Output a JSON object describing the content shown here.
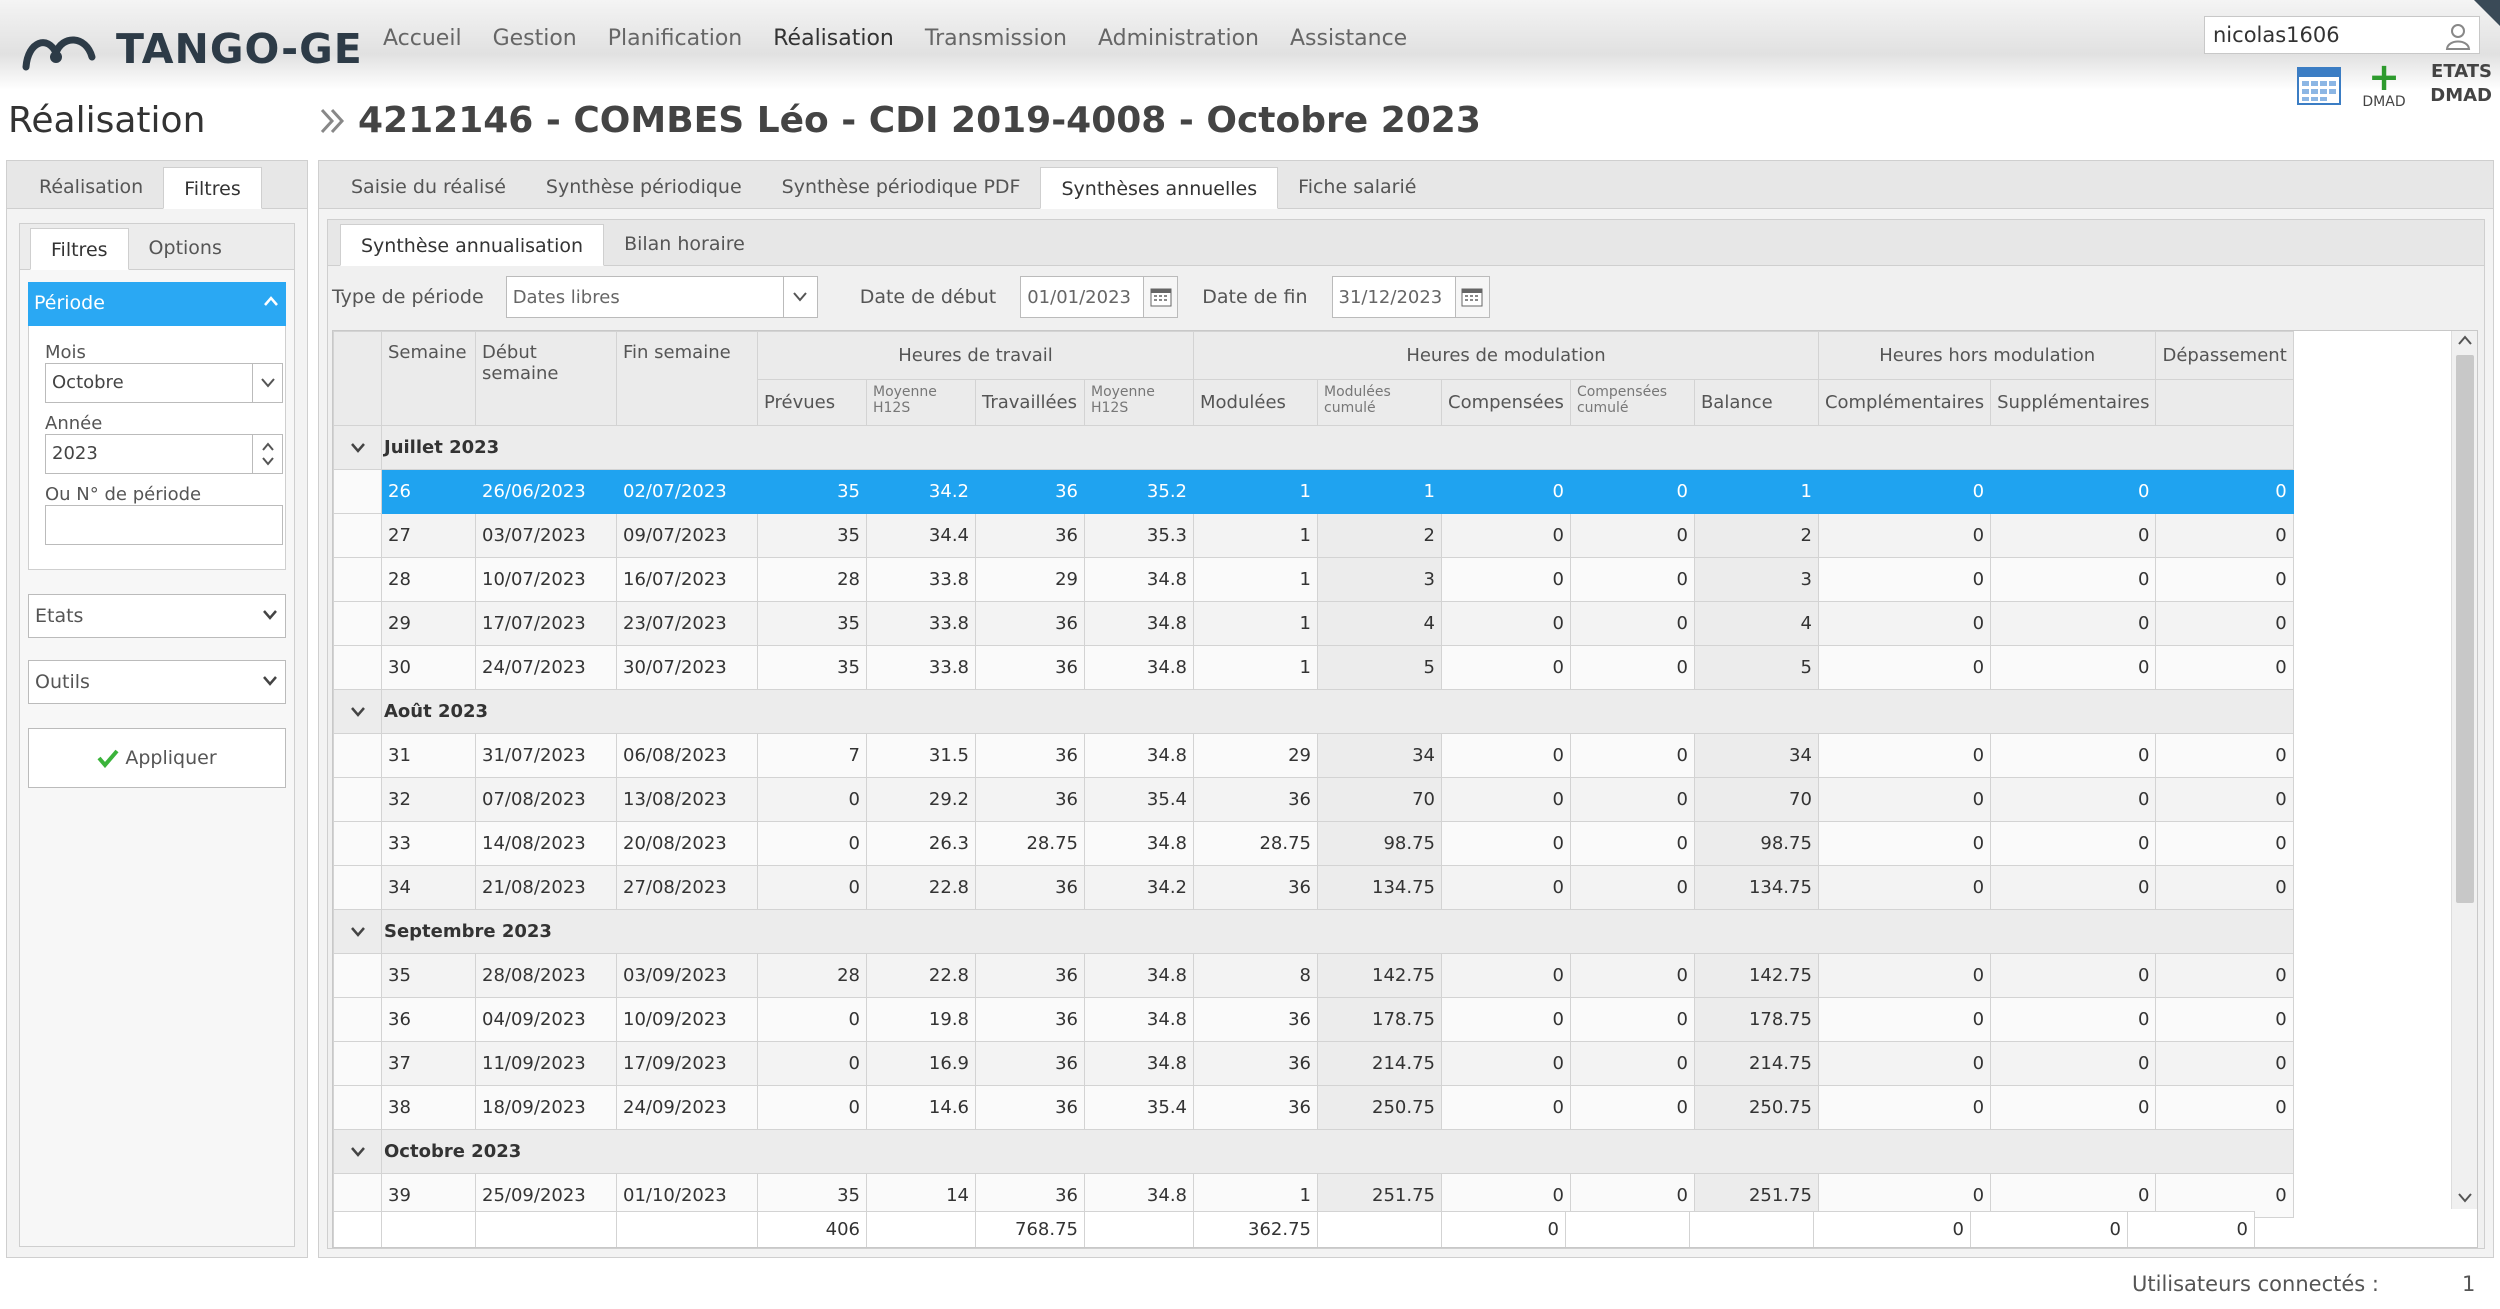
{
  "app": {
    "logo_text": "TANGO-GE",
    "nav": [
      "Accueil",
      "Gestion",
      "Planification",
      "Réalisation",
      "Transmission",
      "Administration",
      "Assistance"
    ],
    "active_nav": "Réalisation",
    "user": "nicolas1606",
    "tools": {
      "dmad_label": "DMAD",
      "etats_label": "ETATS",
      "etats_sub": "DMAD"
    }
  },
  "page": {
    "title": "Réalisation",
    "heading": "4212146 - COMBES Léo - CDI 2019-4008 - Octobre 2023"
  },
  "left": {
    "tabs": [
      "Réalisation",
      "Filtres"
    ],
    "active_tab": "Filtres",
    "inner_tabs": [
      "Filtres",
      "Options"
    ],
    "section": "Période",
    "mois_label": "Mois",
    "mois_value": "Octobre",
    "annee_label": "Année",
    "annee_value": "2023",
    "periode_label": "Ou N° de période",
    "periode_value": "",
    "etats": "Etats",
    "outils": "Outils",
    "apply": "Appliquer"
  },
  "main": {
    "tabs": [
      "Saisie du réalisé",
      "Synthèse périodique",
      "Synthèse périodique PDF",
      "Synthèses annuelles",
      "Fiche salarié"
    ],
    "active_tab": "Synthèses annuelles",
    "sub_tabs": [
      "Synthèse annualisation",
      "Bilan horaire"
    ],
    "filters": {
      "type_label": "Type de période",
      "type_value": "Dates libres",
      "debut_label": "Date de début",
      "debut_value": "01/01/2023",
      "fin_label": "Date de fin",
      "fin_value": "31/12/2023"
    }
  },
  "grid": {
    "headers": {
      "semaine": "Semaine",
      "debut": "Début semaine",
      "fin": "Fin semaine",
      "g_travail": "Heures de travail",
      "g_modulation": "Heures de modulation",
      "g_hors": "Heures hors modulation",
      "depassement": "Dépassement",
      "prevues": "Prévues",
      "moy1": "Moyenne H12S",
      "travaillees": "Travaillées",
      "moy2": "Moyenne H12S",
      "modulees": "Modulées",
      "modcum": "Modulées cumulé",
      "compensees": "Compensées",
      "compcum": "Compensées cumulé",
      "balance": "Balance",
      "complementaires": "Complémentaires",
      "supplementaires": "Supplémentaires"
    },
    "groups": [
      {
        "label": "Juillet 2023",
        "rows": [
          [
            "26",
            "26/06/2023",
            "02/07/2023",
            "35",
            "34.2",
            "36",
            "35.2",
            "1",
            "1",
            "0",
            "0",
            "1",
            "0",
            "0",
            "0"
          ],
          [
            "27",
            "03/07/2023",
            "09/07/2023",
            "35",
            "34.4",
            "36",
            "35.3",
            "1",
            "2",
            "0",
            "0",
            "2",
            "0",
            "0",
            "0"
          ],
          [
            "28",
            "10/07/2023",
            "16/07/2023",
            "28",
            "33.8",
            "29",
            "34.8",
            "1",
            "3",
            "0",
            "0",
            "3",
            "0",
            "0",
            "0"
          ],
          [
            "29",
            "17/07/2023",
            "23/07/2023",
            "35",
            "33.8",
            "36",
            "34.8",
            "1",
            "4",
            "0",
            "0",
            "4",
            "0",
            "0",
            "0"
          ],
          [
            "30",
            "24/07/2023",
            "30/07/2023",
            "35",
            "33.8",
            "36",
            "34.8",
            "1",
            "5",
            "0",
            "0",
            "5",
            "0",
            "0",
            "0"
          ]
        ]
      },
      {
        "label": "Août 2023",
        "rows": [
          [
            "31",
            "31/07/2023",
            "06/08/2023",
            "7",
            "31.5",
            "36",
            "34.8",
            "29",
            "34",
            "0",
            "0",
            "34",
            "0",
            "0",
            "0"
          ],
          [
            "32",
            "07/08/2023",
            "13/08/2023",
            "0",
            "29.2",
            "36",
            "35.4",
            "36",
            "70",
            "0",
            "0",
            "70",
            "0",
            "0",
            "0"
          ],
          [
            "33",
            "14/08/2023",
            "20/08/2023",
            "0",
            "26.3",
            "28.75",
            "34.8",
            "28.75",
            "98.75",
            "0",
            "0",
            "98.75",
            "0",
            "0",
            "0"
          ],
          [
            "34",
            "21/08/2023",
            "27/08/2023",
            "0",
            "22.8",
            "36",
            "34.2",
            "36",
            "134.75",
            "0",
            "0",
            "134.75",
            "0",
            "0",
            "0"
          ]
        ]
      },
      {
        "label": "Septembre 2023",
        "rows": [
          [
            "35",
            "28/08/2023",
            "03/09/2023",
            "28",
            "22.8",
            "36",
            "34.8",
            "8",
            "142.75",
            "0",
            "0",
            "142.75",
            "0",
            "0",
            "0"
          ],
          [
            "36",
            "04/09/2023",
            "10/09/2023",
            "0",
            "19.8",
            "36",
            "34.8",
            "36",
            "178.75",
            "0",
            "0",
            "178.75",
            "0",
            "0",
            "0"
          ],
          [
            "37",
            "11/09/2023",
            "17/09/2023",
            "0",
            "16.9",
            "36",
            "34.8",
            "36",
            "214.75",
            "0",
            "0",
            "214.75",
            "0",
            "0",
            "0"
          ],
          [
            "38",
            "18/09/2023",
            "24/09/2023",
            "0",
            "14.6",
            "36",
            "35.4",
            "36",
            "250.75",
            "0",
            "0",
            "250.75",
            "0",
            "0",
            "0"
          ]
        ]
      },
      {
        "label": "Octobre 2023",
        "rows": [
          [
            "39",
            "25/09/2023",
            "01/10/2023",
            "35",
            "14",
            "36",
            "34.8",
            "1",
            "251.75",
            "0",
            "0",
            "251.75",
            "0",
            "0",
            "0"
          ]
        ]
      }
    ],
    "selected_week": "26",
    "totals": [
      "",
      "",
      "",
      "406",
      "",
      "768.75",
      "",
      "362.75",
      "",
      "0",
      "",
      "",
      "0",
      "0",
      "0"
    ]
  },
  "footer": {
    "label": "Utilisateurs connectés :",
    "count": "1"
  }
}
